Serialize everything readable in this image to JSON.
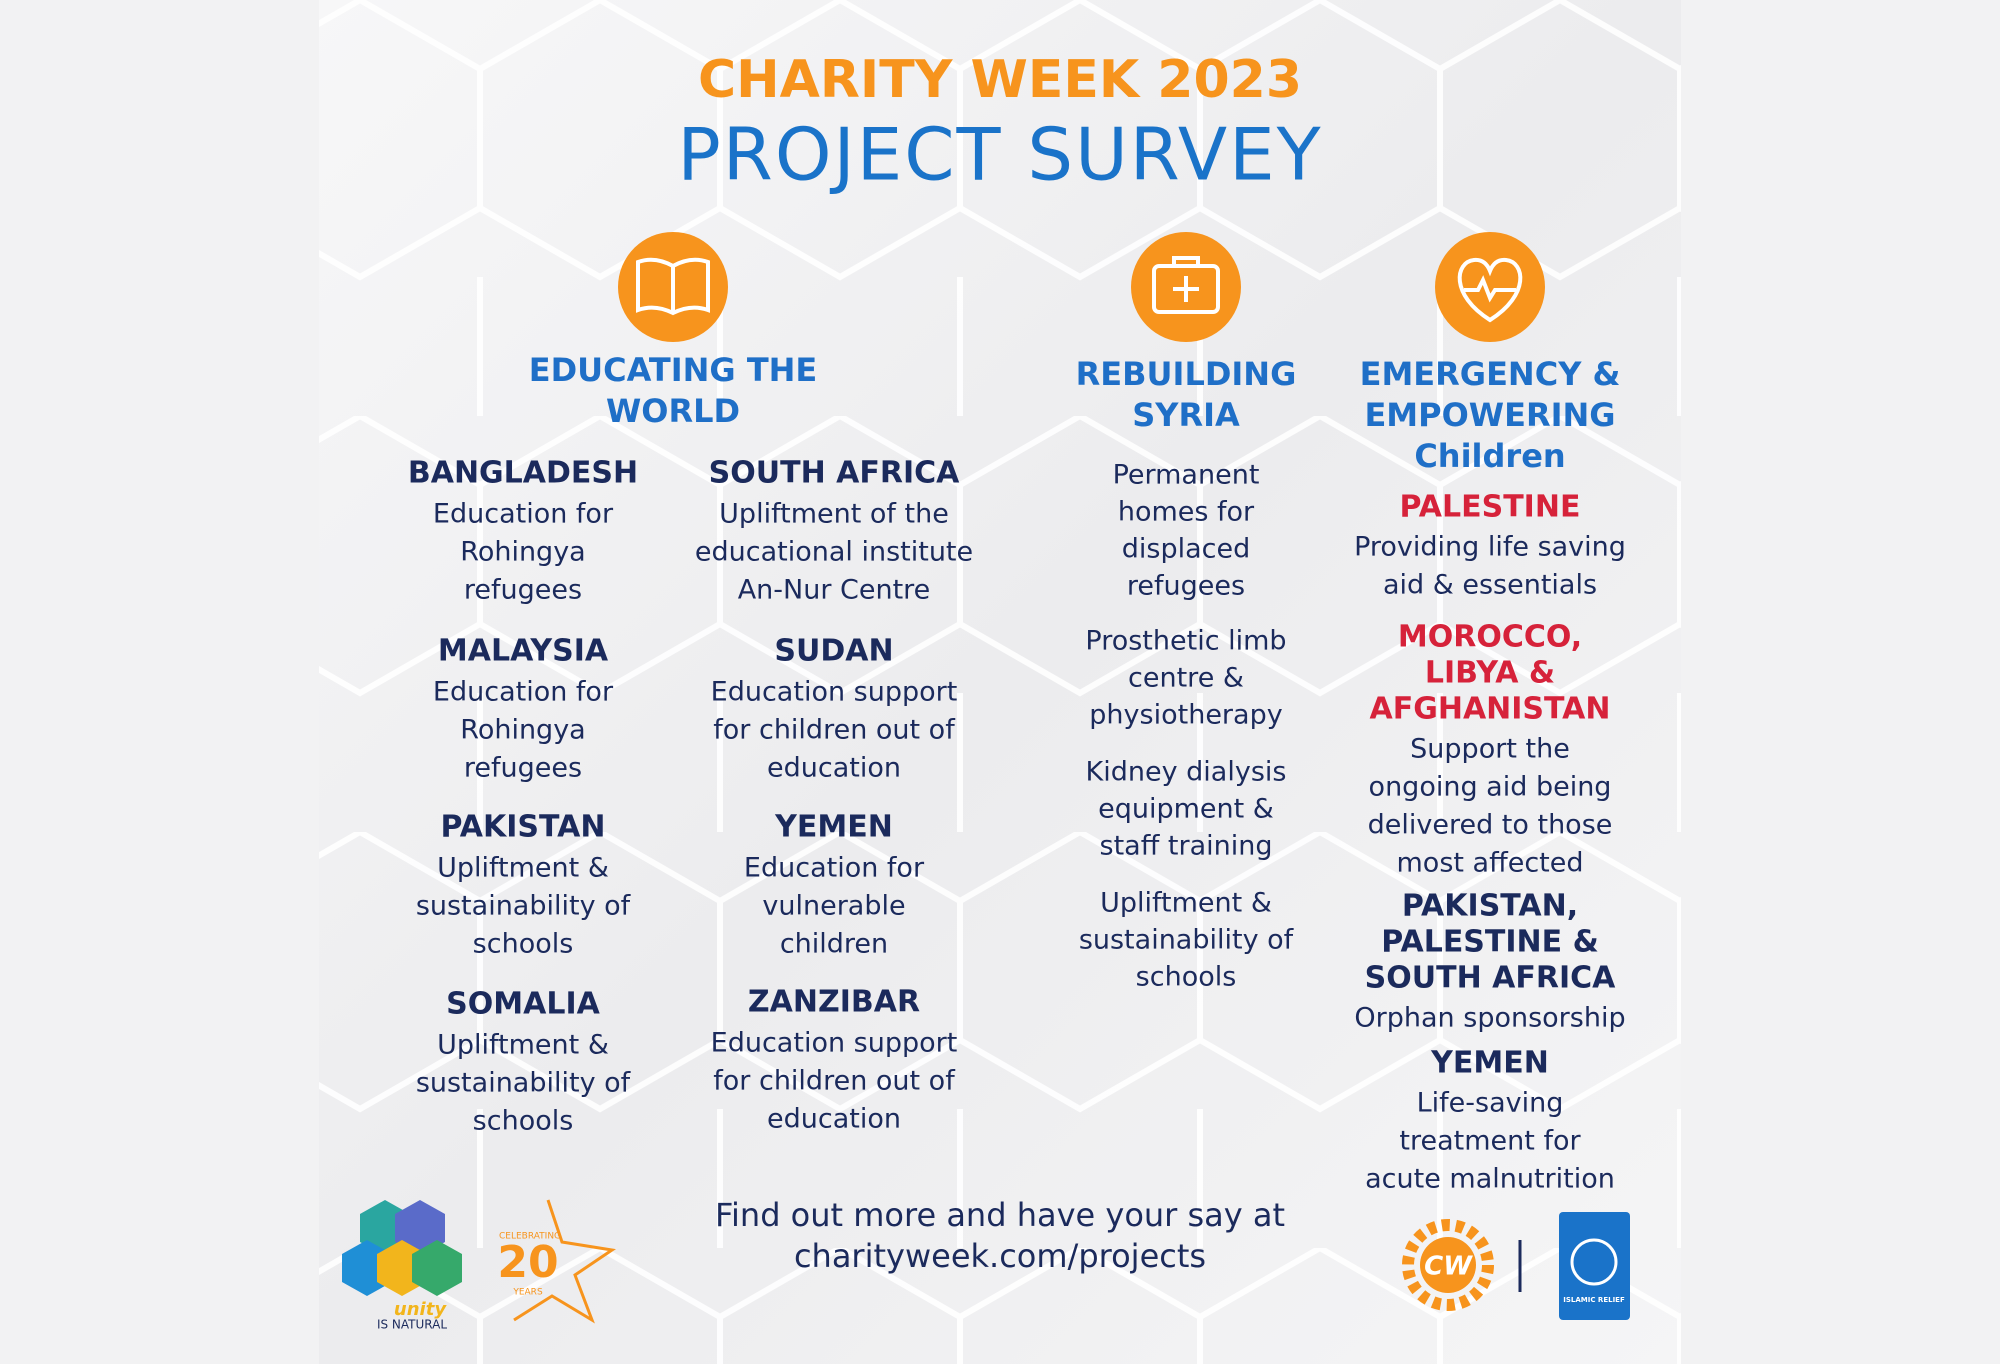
{
  "header": {
    "title": "CHARITY WEEK 2023",
    "subtitle": "PROJECT SURVEY"
  },
  "sections": [
    {
      "heading": [
        "EDUCATING THE",
        "WORLD"
      ],
      "projects": [
        {
          "country": [
            "BANGLADESH"
          ],
          "description": [
            "Education for",
            "Rohingya",
            "refugees"
          ]
        },
        {
          "country": [
            "MALAYSIA"
          ],
          "description": [
            "Education for",
            "Rohingya",
            "refugees"
          ]
        },
        {
          "country": [
            "PAKISTAN"
          ],
          "description": [
            "Upliftment &",
            "sustainability of",
            "schools"
          ]
        },
        {
          "country": [
            "SOMALIA"
          ],
          "description": [
            "Upliftment &",
            "sustainability of",
            "schools"
          ]
        },
        {
          "country": [
            "SOUTH AFRICA"
          ],
          "description": [
            "Upliftment of the",
            "educational institute",
            "An-Nur Centre"
          ]
        },
        {
          "country": [
            "SUDAN"
          ],
          "description": [
            "Education support",
            "for children out of",
            "education"
          ]
        },
        {
          "country": [
            "YEMEN"
          ],
          "description": [
            "Education for",
            "vulnerable",
            "children"
          ]
        },
        {
          "country": [
            "ZANZIBAR"
          ],
          "description": [
            "Education support",
            "for children out of",
            "education"
          ]
        }
      ]
    },
    {
      "heading": [
        "REBUILDING",
        "SYRIA"
      ],
      "projects": [
        {
          "description": [
            "Permanent",
            "homes for",
            "displaced",
            "refugees"
          ]
        },
        {
          "description": [
            "Prosthetic limb",
            "centre &",
            "physiotherapy"
          ]
        },
        {
          "description": [
            "Kidney dialysis",
            "equipment &",
            "staff training"
          ]
        },
        {
          "description": [
            "Upliftment &",
            "sustainability of",
            "schools"
          ]
        }
      ]
    },
    {
      "heading": [
        "EMERGENCY &",
        "EMPOWERING",
        "Children"
      ],
      "projects": [
        {
          "country": [
            "PALESTINE"
          ],
          "description": [
            "Providing life saving",
            "aid & essentials"
          ]
        },
        {
          "country": [
            "MOROCCO,",
            "LIBYA &",
            "AFGHANISTAN"
          ],
          "description": [
            "Support the",
            "ongoing aid being",
            "delivered to those",
            "most affected"
          ]
        },
        {
          "country": [
            "PAKISTAN,",
            "PALESTINE &",
            "SOUTH AFRICA"
          ],
          "description": [
            "Orphan sponsorship"
          ]
        },
        {
          "country": [
            "YEMEN"
          ],
          "description": [
            "Life-saving",
            "treatment for",
            "acute malnutrition"
          ]
        }
      ]
    }
  ],
  "footer": {
    "lines": [
      "Find out more and have your say at",
      "charityweek.com/projects"
    ]
  },
  "logos": {
    "unity": "unity",
    "unity_sub": "IS NATURAL",
    "celebrating": "CELEBRATING",
    "years_number": "20",
    "years": "YEARS",
    "cw": "CW",
    "relief": "ISLAMIC RELIEF"
  }
}
